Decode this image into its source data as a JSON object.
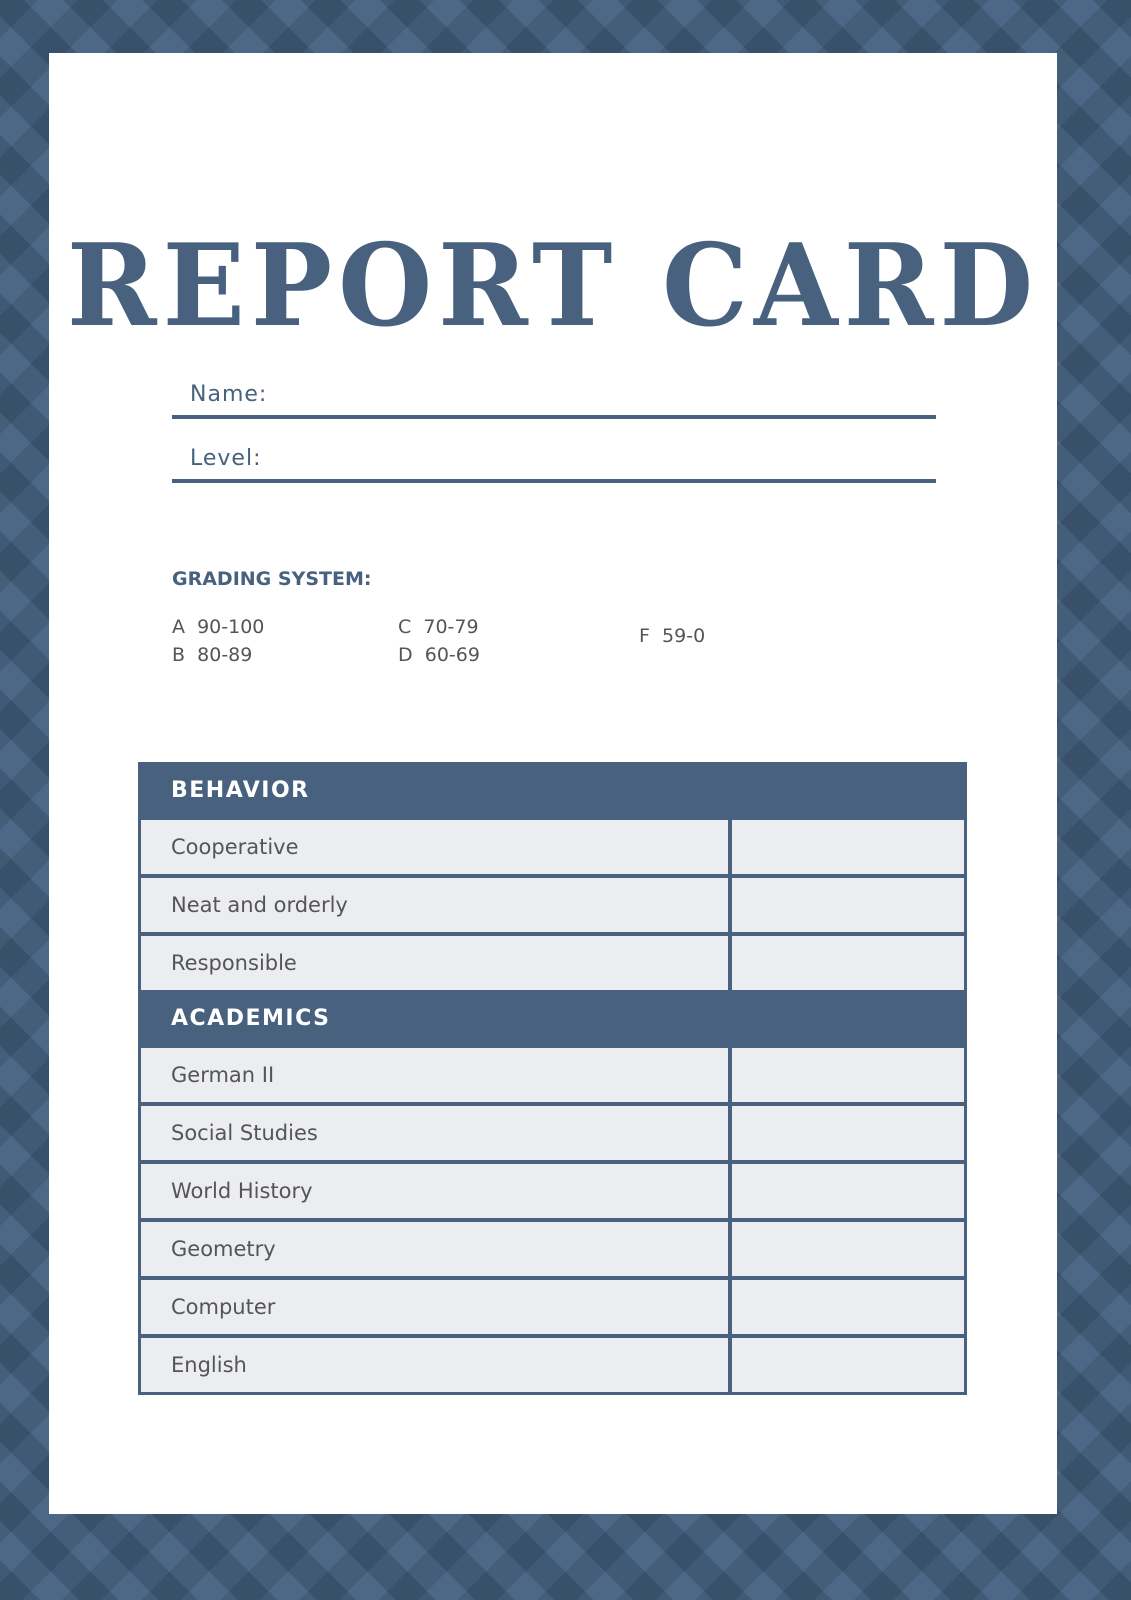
{
  "title": "REPORT CARD",
  "fields": {
    "name_label": "Name:",
    "level_label": "Level:"
  },
  "grading": {
    "title": "GRADING SYSTEM:",
    "grades": [
      {
        "letter": "A",
        "range": "90-100"
      },
      {
        "letter": "B",
        "range": "80-89"
      },
      {
        "letter": "C",
        "range": "70-79"
      },
      {
        "letter": "D",
        "range": "60-69"
      },
      {
        "letter": "F",
        "range": "59-0"
      }
    ]
  },
  "table": {
    "behavior": {
      "title": "BEHAVIOR",
      "items": [
        "Cooperative",
        "Neat and orderly",
        "Responsible"
      ]
    },
    "academics": {
      "title": "ACADEMICS",
      "items": [
        "German II",
        "Social Studies",
        "World History",
        "Geometry",
        "Computer",
        "English"
      ]
    }
  },
  "colors": {
    "accent": "#47617e",
    "row_fill": "#ecedf0"
  }
}
